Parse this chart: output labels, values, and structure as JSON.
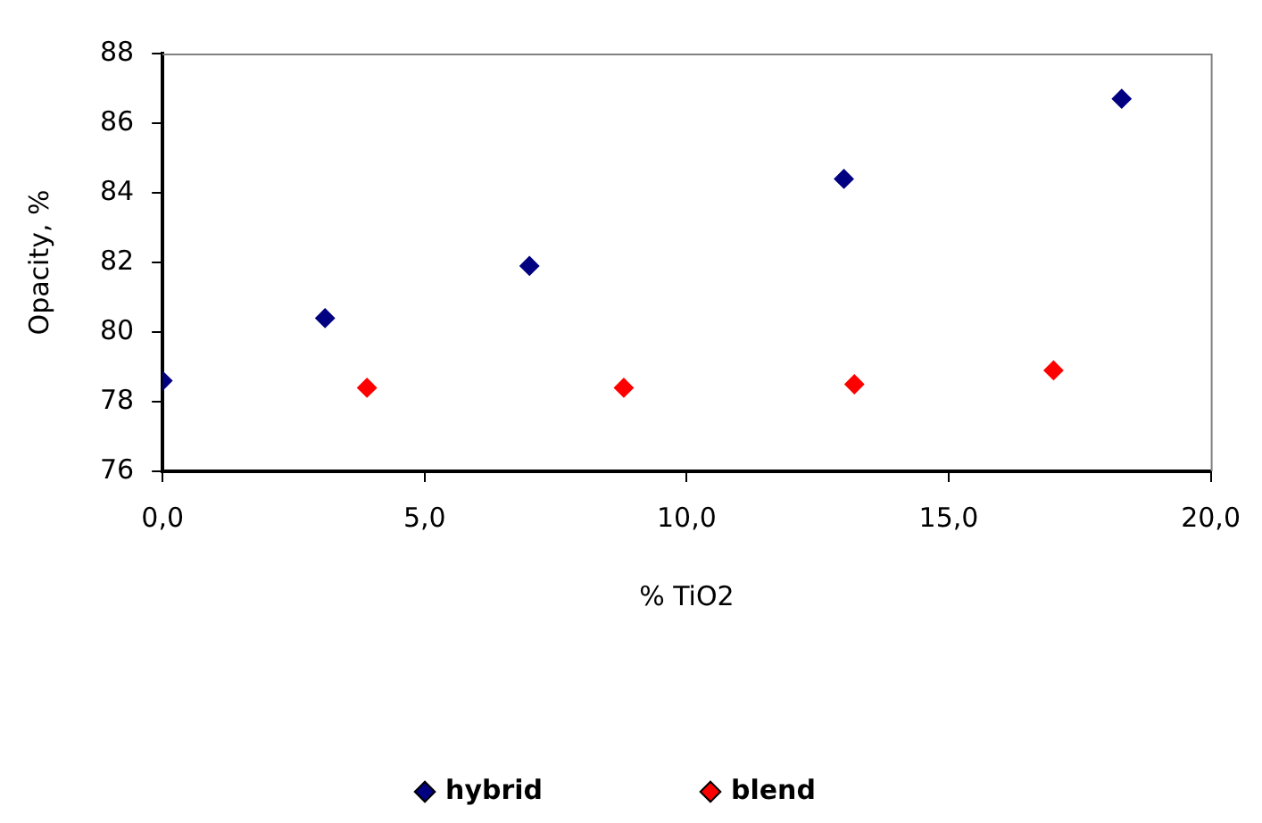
{
  "chart_data": {
    "type": "scatter",
    "xlabel": "% TiO2",
    "ylabel": "Opacity, %",
    "series": [
      {
        "name": "hybrid",
        "color": "#000080",
        "x": [
          0,
          3.1,
          7.0,
          13.0,
          18.3
        ],
        "values": [
          78.6,
          80.4,
          81.9,
          84.4,
          86.7
        ]
      },
      {
        "name": "blend",
        "color": "#ff0000",
        "x": [
          3.9,
          8.8,
          13.2,
          17.0
        ],
        "values": [
          78.4,
          78.4,
          78.5,
          78.9
        ]
      }
    ],
    "xlim": [
      0,
      20
    ],
    "xticks": [
      {
        "value": 0,
        "label": "0,0"
      },
      {
        "value": 5,
        "label": "5,0"
      },
      {
        "value": 10,
        "label": "10,0"
      },
      {
        "value": 15,
        "label": "15,0"
      },
      {
        "value": 20,
        "label": "20,0"
      }
    ],
    "ylim": [
      76,
      88
    ],
    "yticks": [
      76,
      78,
      80,
      82,
      84,
      86,
      88
    ],
    "grid": false,
    "legend": "bottom",
    "marker": "diamond"
  }
}
